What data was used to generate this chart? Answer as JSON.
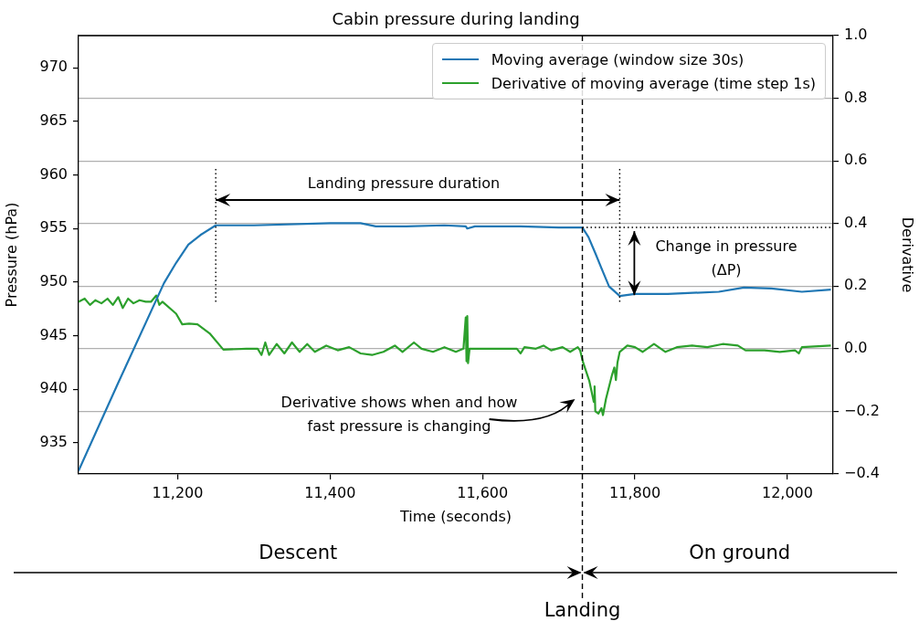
{
  "chart_data": {
    "type": "line",
    "title": "Cabin pressure during landing",
    "xlabel": "Time (seconds)",
    "ylabel": "Pressure (hPa)",
    "y2label": "Derivative",
    "xlim": [
      11070,
      12060
    ],
    "xticks": [
      {
        "value": 11200,
        "label": "11,200"
      },
      {
        "value": 11400,
        "label": "11,400"
      },
      {
        "value": 11600,
        "label": "11,600"
      },
      {
        "value": 11800,
        "label": "11,800"
      },
      {
        "value": 12000,
        "label": "12,000"
      }
    ],
    "ylim": [
      932.1,
      973
    ],
    "yticks": [
      935,
      940,
      945,
      950,
      955,
      960,
      965,
      970
    ],
    "y2lim": [
      -0.4,
      1.0
    ],
    "y2ticks": [
      {
        "value": -0.4,
        "label": "−0.4"
      },
      {
        "value": -0.2,
        "label": "−0.2"
      },
      {
        "value": 0,
        "label": "0.0"
      },
      {
        "value": 0.2,
        "label": "0.2"
      },
      {
        "value": 0.4,
        "label": "0.4"
      },
      {
        "value": 0.6,
        "label": "0.6"
      },
      {
        "value": 0.8,
        "label": "0.8"
      },
      {
        "value": 1.0,
        "label": "1.0"
      }
    ],
    "grid": "y2",
    "legend": "top right",
    "line_style": "solid",
    "series": [
      {
        "name": "Moving average (window size 30s)",
        "color": "#1f77b4",
        "x": [
          11070,
          11122,
          11182,
          11198,
          11214,
          11230,
          11250,
          11300,
          11400,
          11440,
          11460,
          11500,
          11550,
          11578,
          11580,
          11590,
          11650,
          11700,
          11731,
          11739,
          11748,
          11756,
          11766,
          11780,
          11800,
          11843,
          11910,
          11943,
          11979,
          12019,
          12057
        ],
        "values": [
          932.4,
          940.6,
          949.9,
          951.8,
          953.5,
          954.4,
          955.3,
          955.3,
          955.5,
          955.5,
          955.2,
          955.2,
          955.3,
          955.2,
          955.0,
          955.2,
          955.2,
          955.1,
          955.1,
          954.2,
          952.7,
          951.3,
          949.6,
          948.7,
          948.9,
          948.9,
          949.1,
          949.5,
          949.4,
          949.1,
          949.3
        ]
      },
      {
        "name": "Derivative of moving average (time step 1s)",
        "color": "#2ca02c",
        "axis": "y2",
        "x": [
          11070,
          11078,
          11085,
          11092,
          11100,
          11108,
          11115,
          11122,
          11128,
          11135,
          11142,
          11150,
          11158,
          11165,
          11172,
          11176,
          11180,
          11198,
          11206,
          11215,
          11226,
          11242,
          11260,
          11290,
          11305,
          11310,
          11315,
          11320,
          11330,
          11340,
          11350,
          11360,
          11370,
          11380,
          11395,
          11410,
          11425,
          11440,
          11455,
          11470,
          11485,
          11495,
          11510,
          11520,
          11535,
          11550,
          11565,
          11575,
          11578,
          11579,
          11580,
          11581,
          11583,
          11645,
          11650,
          11655,
          11670,
          11680,
          11690,
          11705,
          11715,
          11725,
          11728,
          11732,
          11740,
          11746,
          11747,
          11748,
          11752,
          11756,
          11758,
          11762,
          11770,
          11773,
          11775,
          11777,
          11780,
          11790,
          11800,
          11810,
          11825,
          11840,
          11855,
          11875,
          11895,
          11915,
          11935,
          11945,
          11970,
          11990,
          12010,
          12015,
          12019,
          12057
        ],
        "values": [
          0.15,
          0.16,
          0.14,
          0.155,
          0.145,
          0.16,
          0.14,
          0.165,
          0.13,
          0.16,
          0.145,
          0.155,
          0.15,
          0.15,
          0.17,
          0.14,
          0.15,
          0.112,
          0.078,
          0.08,
          0.078,
          0.049,
          -0.003,
          0.0,
          0.0,
          -0.02,
          0.02,
          -0.02,
          0.015,
          -0.015,
          0.02,
          -0.01,
          0.015,
          -0.01,
          0.01,
          -0.005,
          0.005,
          -0.015,
          -0.02,
          -0.01,
          0.01,
          -0.01,
          0.02,
          0.0,
          -0.01,
          0.005,
          -0.01,
          0.0,
          0.1,
          -0.04,
          0.104,
          -0.046,
          0.0,
          0.0,
          -0.015,
          0.005,
          0.0,
          0.01,
          -0.005,
          0.005,
          -0.01,
          0.005,
          -0.005,
          -0.044,
          -0.102,
          -0.17,
          -0.12,
          -0.2,
          -0.207,
          -0.19,
          -0.212,
          -0.16,
          -0.083,
          -0.06,
          -0.1,
          -0.045,
          -0.01,
          0.01,
          0.005,
          -0.01,
          0.015,
          -0.01,
          0.005,
          0.01,
          0.005,
          0.015,
          0.01,
          -0.005,
          -0.005,
          -0.01,
          -0.005,
          -0.015,
          0.005,
          0.01
        ]
      }
    ],
    "ref_lines": [
      {
        "axis": "x",
        "value": 11731,
        "label": "Landing",
        "line_style": "dashed"
      },
      {
        "axis": "x",
        "value": 11250,
        "line_style": "dotted"
      },
      {
        "axis": "x",
        "value": 11780,
        "line_style": "dotted"
      },
      {
        "axis": "y",
        "value": 955.1,
        "line_style": "dotted"
      }
    ],
    "annotations": [
      "Landing pressure duration",
      "Change in pressure (ΔP)",
      "Derivative shows when and how fast pressure is changing",
      "Descent",
      "On ground"
    ]
  }
}
